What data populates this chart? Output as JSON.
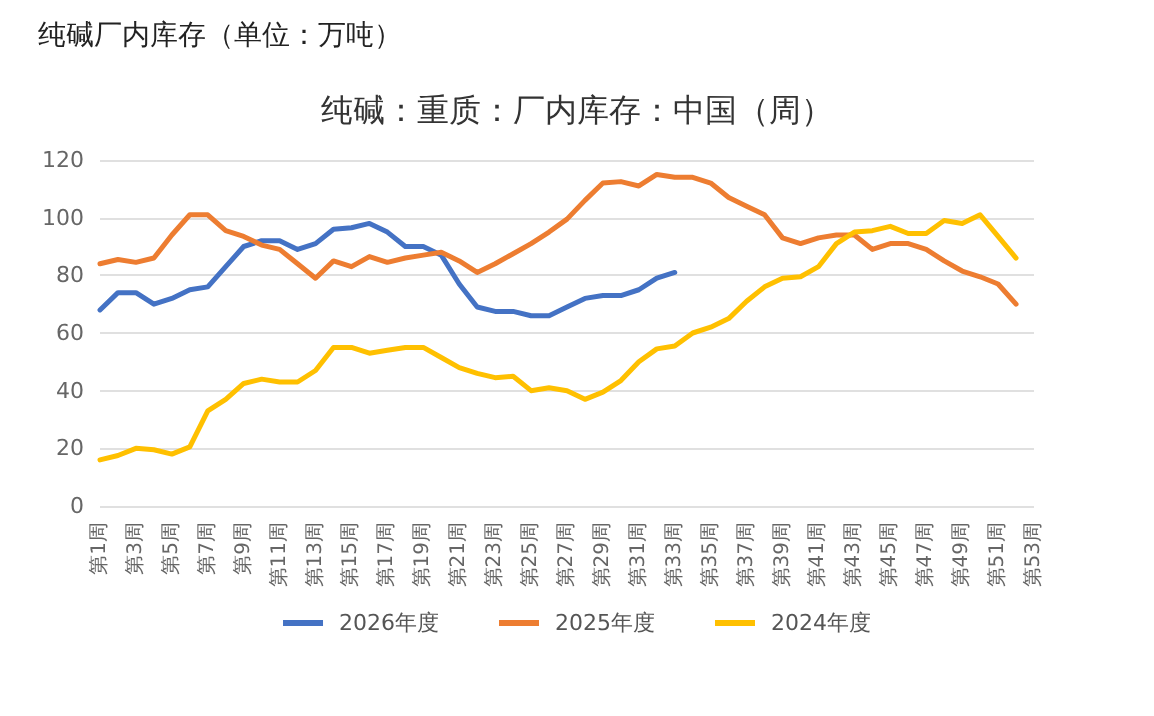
{
  "chart_data": {
    "type": "line",
    "title": "纯碱：重质：厂内库存：中国（周）",
    "subtitle": "纯碱厂内库存（单位：万吨）",
    "categories": [
      "第1周",
      null,
      "第3周",
      null,
      "第5周",
      null,
      "第7周",
      null,
      "第9周",
      null,
      "第11周",
      null,
      "第13周",
      null,
      "第15周",
      null,
      "第17周",
      null,
      "第19周",
      null,
      "第21周",
      null,
      "第23周",
      null,
      "第25周",
      null,
      "第27周",
      null,
      "第29周",
      null,
      "第31周",
      null,
      "第33周",
      null,
      "第35周",
      null,
      "第37周",
      null,
      "第39周",
      null,
      "第41周",
      null,
      "第43周",
      null,
      "第45周",
      null,
      "第47周",
      null,
      "第49周",
      null,
      "第51周",
      null,
      "第53周"
    ],
    "series": [
      {
        "name": "2026年度",
        "color": "#4472c4",
        "values": [
          68,
          74,
          74,
          70,
          72,
          75,
          76,
          83,
          90,
          92,
          92,
          89,
          91,
          96,
          96.5,
          98,
          95,
          90,
          90,
          87,
          77,
          69,
          67.5,
          67.5,
          66,
          66,
          69,
          72,
          73,
          73,
          75,
          79,
          81,
          null,
          null,
          null,
          null,
          null,
          null,
          null,
          null,
          null,
          null,
          null,
          null,
          null,
          null,
          null,
          null,
          null,
          null,
          null,
          null
        ]
      },
      {
        "name": "2025年度",
        "color": "#ed7d31",
        "values": [
          84,
          85.5,
          84.5,
          86,
          94,
          101,
          101,
          95.5,
          93.5,
          90.5,
          89,
          84,
          79,
          85,
          83,
          86.5,
          84.5,
          86,
          87,
          88,
          85,
          81,
          84,
          87.5,
          91,
          95,
          99.5,
          106,
          112,
          112.5,
          111,
          115,
          114,
          114,
          112,
          107,
          104,
          101,
          93,
          91,
          93,
          94,
          94,
          89,
          91,
          91,
          89,
          85,
          81.5,
          79.5,
          77,
          70,
          null
        ]
      },
      {
        "name": "2024年度",
        "color": "#ffc000",
        "values": [
          16,
          17.5,
          20,
          19.5,
          18,
          20.5,
          33,
          37,
          42.5,
          44,
          43,
          43,
          47,
          55,
          55,
          53,
          54,
          55,
          55,
          51.5,
          48,
          46,
          44.5,
          45,
          40,
          41,
          40,
          37,
          39.5,
          43.5,
          50,
          54.5,
          55.5,
          60,
          62,
          65,
          71,
          76,
          79,
          79.5,
          83,
          91,
          95,
          95.5,
          97,
          94.5,
          94.5,
          99,
          98,
          101,
          93.5,
          86,
          null
        ]
      }
    ],
    "ylim": [
      0,
      120
    ],
    "yticks": [
      0,
      20,
      40,
      60,
      80,
      100,
      120
    ],
    "grid": "y",
    "legend": "bottom",
    "marker": "none",
    "line_style": "solid"
  }
}
